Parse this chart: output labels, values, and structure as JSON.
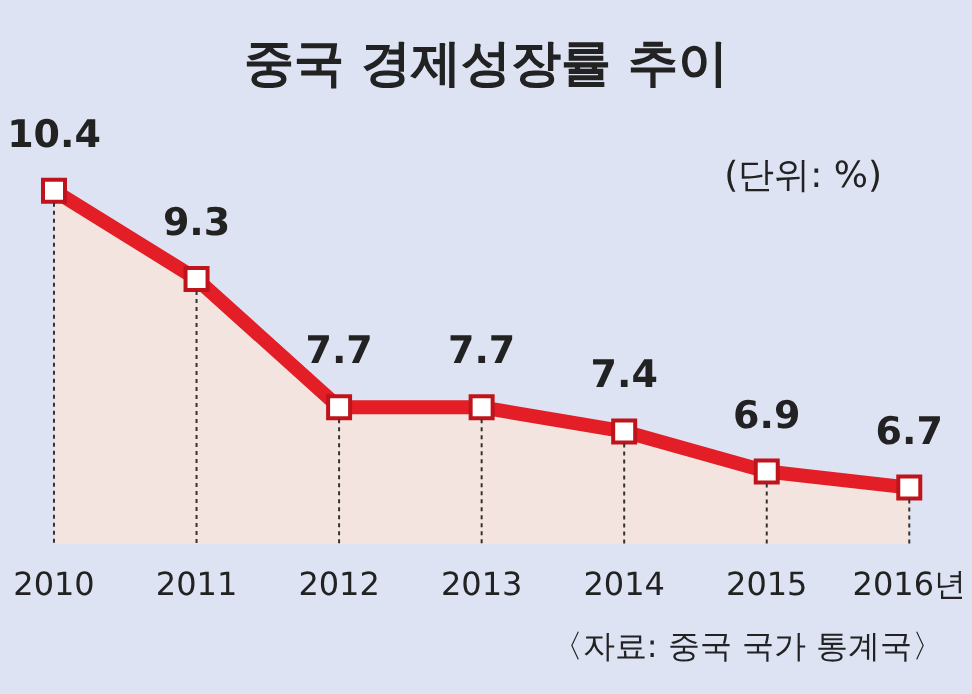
{
  "chart_data": {
    "type": "area",
    "title": "중국 경제성장률 추이",
    "subtitle": "(단위: %)",
    "annotations": [
      "〈자료: 중국 국가 통계국〉"
    ],
    "categories": [
      "2010",
      "2011",
      "2012",
      "2013",
      "2014",
      "2015",
      "2016년"
    ],
    "series": [
      {
        "color": "#e41e26",
        "values": [
          10.4,
          9.3,
          7.7,
          7.7,
          7.4,
          6.9,
          6.7
        ]
      }
    ],
    "data_labels": true,
    "marker": "square",
    "tick_labels": "x"
  }
}
